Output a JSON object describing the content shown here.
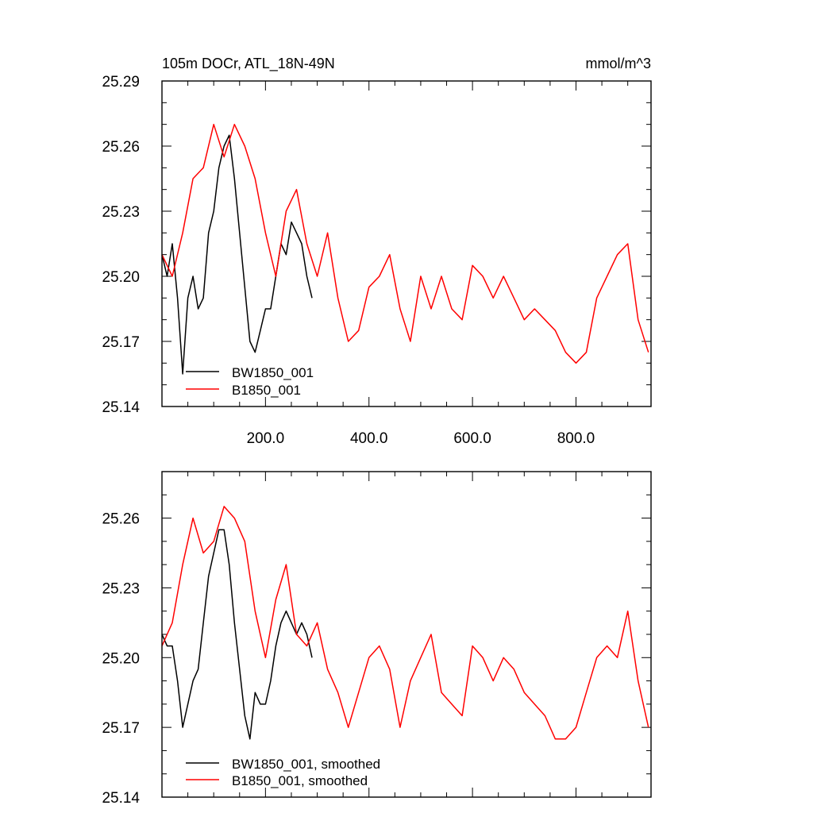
{
  "chart_data": [
    {
      "type": "line",
      "title": "105m DOCr, ATL_18N-49N",
      "units": "mmol/m^3",
      "xlim": [
        0,
        945
      ],
      "ylim": [
        25.14,
        25.29
      ],
      "xticks": [
        200,
        400,
        600,
        800
      ],
      "xtick_labels": [
        "200.0",
        "400.0",
        "600.0",
        "800.0"
      ],
      "yticks": [
        25.14,
        25.17,
        25.2,
        25.23,
        25.26,
        25.29
      ],
      "ytick_labels": [
        "25.14",
        "25.17",
        "25.20",
        "25.23",
        "25.26",
        "25.29"
      ],
      "legend_position": "bottom-left",
      "grid": false,
      "series": [
        {
          "name": "BW1850_001",
          "color": "#000000",
          "x": [
            0,
            10,
            20,
            30,
            40,
            50,
            60,
            70,
            80,
            90,
            100,
            110,
            120,
            130,
            140,
            150,
            160,
            170,
            180,
            190,
            200,
            210,
            220,
            230,
            240,
            250,
            260,
            270,
            280,
            290
          ],
          "y": [
            25.21,
            25.2,
            25.215,
            25.19,
            25.155,
            25.19,
            25.2,
            25.185,
            25.19,
            25.22,
            25.23,
            25.25,
            25.26,
            25.265,
            25.245,
            25.22,
            25.195,
            25.17,
            25.165,
            25.175,
            25.185,
            25.185,
            25.2,
            25.215,
            25.21,
            25.225,
            25.22,
            25.215,
            25.2,
            25.19
          ]
        },
        {
          "name": "B1850_001",
          "color": "#ff0000",
          "x": [
            0,
            20,
            40,
            60,
            80,
            100,
            120,
            140,
            160,
            180,
            200,
            220,
            240,
            260,
            280,
            300,
            320,
            340,
            360,
            380,
            400,
            420,
            440,
            460,
            480,
            500,
            520,
            540,
            560,
            580,
            600,
            620,
            640,
            660,
            680,
            700,
            720,
            740,
            760,
            780,
            800,
            820,
            840,
            860,
            880,
            900,
            920,
            940
          ],
          "y": [
            25.21,
            25.2,
            25.22,
            25.245,
            25.25,
            25.27,
            25.255,
            25.27,
            25.26,
            25.245,
            25.22,
            25.2,
            25.23,
            25.24,
            25.215,
            25.2,
            25.22,
            25.19,
            25.17,
            25.175,
            25.195,
            25.2,
            25.21,
            25.185,
            25.17,
            25.2,
            25.185,
            25.2,
            25.185,
            25.18,
            25.205,
            25.2,
            25.19,
            25.2,
            25.19,
            25.18,
            25.185,
            25.18,
            25.175,
            25.165,
            25.16,
            25.165,
            25.19,
            25.2,
            25.21,
            25.215,
            25.18,
            25.165
          ]
        }
      ]
    },
    {
      "type": "line",
      "xlim": [
        0,
        945
      ],
      "ylim": [
        25.14,
        25.28
      ],
      "yticks": [
        25.14,
        25.17,
        25.2,
        25.23,
        25.26
      ],
      "ytick_labels": [
        "25.14",
        "25.17",
        "25.20",
        "25.23",
        "25.26"
      ],
      "xticks": [
        200,
        400,
        600,
        800
      ],
      "legend_position": "bottom-left",
      "grid": false,
      "series": [
        {
          "name": "BW1850_001, smoothed",
          "color": "#000000",
          "x": [
            0,
            10,
            20,
            30,
            40,
            50,
            60,
            70,
            80,
            90,
            100,
            110,
            120,
            130,
            140,
            150,
            160,
            170,
            180,
            190,
            200,
            210,
            220,
            230,
            240,
            250,
            260,
            270,
            280,
            290
          ],
          "y": [
            25.21,
            25.205,
            25.205,
            25.19,
            25.17,
            25.18,
            25.19,
            25.195,
            25.215,
            25.235,
            25.245,
            25.255,
            25.255,
            25.24,
            25.215,
            25.195,
            25.175,
            25.165,
            25.185,
            25.18,
            25.18,
            25.19,
            25.205,
            25.215,
            25.22,
            25.215,
            25.21,
            25.215,
            25.21,
            25.2
          ]
        },
        {
          "name": "B1850_001, smoothed",
          "color": "#ff0000",
          "x": [
            0,
            20,
            40,
            60,
            80,
            100,
            120,
            140,
            160,
            180,
            200,
            220,
            240,
            260,
            280,
            300,
            320,
            340,
            360,
            380,
            400,
            420,
            440,
            460,
            480,
            500,
            520,
            540,
            560,
            580,
            600,
            620,
            640,
            660,
            680,
            700,
            720,
            740,
            760,
            780,
            800,
            820,
            840,
            860,
            880,
            900,
            920,
            940
          ],
          "y": [
            25.205,
            25.215,
            25.24,
            25.26,
            25.245,
            25.25,
            25.265,
            25.26,
            25.25,
            25.22,
            25.2,
            25.225,
            25.24,
            25.21,
            25.205,
            25.215,
            25.195,
            25.185,
            25.17,
            25.185,
            25.2,
            25.205,
            25.195,
            25.17,
            25.19,
            25.2,
            25.21,
            25.185,
            25.18,
            25.175,
            25.205,
            25.2,
            25.19,
            25.2,
            25.195,
            25.185,
            25.18,
            25.175,
            25.165,
            25.165,
            25.17,
            25.185,
            25.2,
            25.205,
            25.2,
            25.22,
            25.19,
            25.17
          ]
        }
      ]
    }
  ]
}
